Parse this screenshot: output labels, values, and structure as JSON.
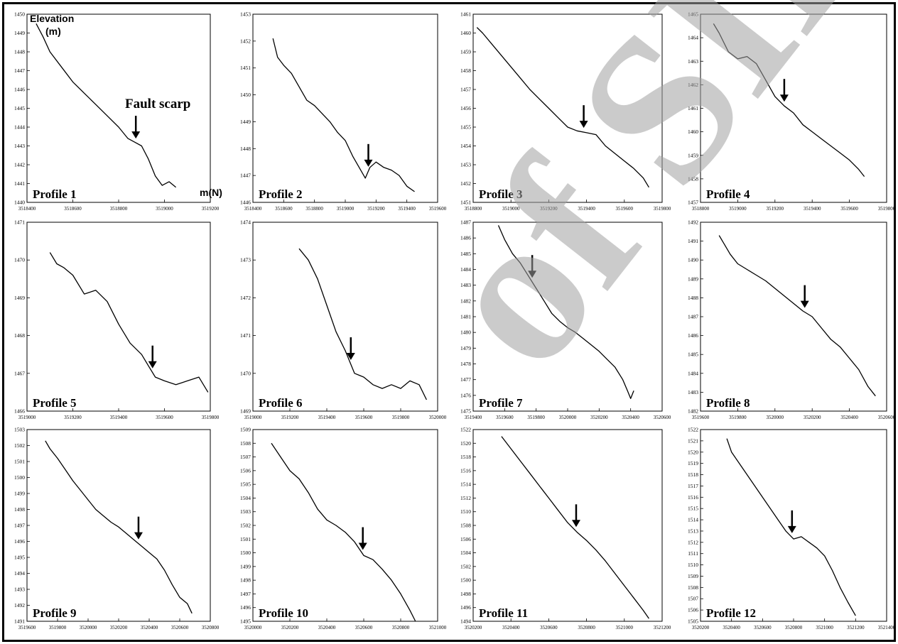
{
  "figure": {
    "y_axis_label_line1": "Elevation",
    "y_axis_label_line2": "(m)",
    "x_axis_label": "m(N)",
    "annotation": "Fault scarp",
    "watermark": "of SID"
  },
  "chart_data": [
    {
      "type": "line",
      "title": "Profile 1",
      "xlim": [
        3518400,
        3519200
      ],
      "ylim": [
        1440,
        1450
      ],
      "xticks": [
        3518400,
        3518600,
        3518800,
        3519000,
        3519200
      ],
      "yticks": [
        1440,
        1441,
        1442,
        1443,
        1444,
        1445,
        1446,
        1447,
        1448,
        1449,
        1450
      ],
      "x": [
        3518440,
        3518470,
        3518500,
        3518550,
        3518600,
        3518650,
        3518700,
        3518750,
        3518800,
        3518840,
        3518870,
        3518900,
        3518930,
        3518960,
        3518990,
        3519020,
        3519050
      ],
      "y": [
        1449.5,
        1448.8,
        1448.0,
        1447.2,
        1446.4,
        1445.8,
        1445.2,
        1444.6,
        1444.0,
        1443.4,
        1443.2,
        1443.0,
        1442.3,
        1441.4,
        1440.9,
        1441.1,
        1440.8
      ],
      "fault_scarp_x": 3518875
    },
    {
      "type": "line",
      "title": "Profile 2",
      "xlim": [
        3518400,
        3519600
      ],
      "ylim": [
        1446,
        1453
      ],
      "xticks": [
        3518400,
        3518600,
        3518800,
        3519000,
        3519200,
        3519400,
        3519600
      ],
      "yticks": [
        1446,
        1447,
        1448,
        1449,
        1450,
        1451,
        1452,
        1453
      ],
      "x": [
        3518530,
        3518560,
        3518600,
        3518650,
        3518700,
        3518750,
        3518800,
        3518850,
        3518900,
        3518950,
        3519000,
        3519050,
        3519100,
        3519130,
        3519160,
        3519200,
        3519250,
        3519300,
        3519350,
        3519400,
        3519450
      ],
      "y": [
        1452.1,
        1451.4,
        1451.1,
        1450.8,
        1450.3,
        1449.8,
        1449.6,
        1449.3,
        1449.0,
        1448.6,
        1448.3,
        1447.7,
        1447.2,
        1446.9,
        1447.3,
        1447.5,
        1447.3,
        1447.2,
        1447.0,
        1446.6,
        1446.4
      ],
      "fault_scarp_x": 3519150
    },
    {
      "type": "line",
      "title": "Profile 3",
      "xlim": [
        3518800,
        3519800
      ],
      "ylim": [
        1451,
        1461
      ],
      "xticks": [
        3518800,
        3519000,
        3519200,
        3519400,
        3519600,
        3519800
      ],
      "yticks": [
        1451,
        1452,
        1453,
        1454,
        1455,
        1456,
        1457,
        1458,
        1459,
        1460,
        1461
      ],
      "x": [
        3518820,
        3518850,
        3518900,
        3518950,
        3519000,
        3519050,
        3519100,
        3519150,
        3519200,
        3519250,
        3519300,
        3519350,
        3519400,
        3519450,
        3519500,
        3519550,
        3519600,
        3519650,
        3519700,
        3519730
      ],
      "y": [
        1460.3,
        1460.0,
        1459.4,
        1458.8,
        1458.2,
        1457.6,
        1457.0,
        1456.5,
        1456.0,
        1455.5,
        1455.0,
        1454.8,
        1454.7,
        1454.6,
        1454.0,
        1453.6,
        1453.2,
        1452.8,
        1452.3,
        1451.8
      ],
      "fault_scarp_x": 3519385
    },
    {
      "type": "line",
      "title": "Profile 4",
      "xlim": [
        3518800,
        3519800
      ],
      "ylim": [
        1457,
        1465
      ],
      "xticks": [
        3518800,
        3519000,
        3519200,
        3519400,
        3519600,
        3519800
      ],
      "yticks": [
        1457,
        1458,
        1459,
        1460,
        1461,
        1462,
        1463,
        1464,
        1465
      ],
      "x": [
        3518870,
        3518900,
        3518950,
        3519000,
        3519050,
        3519100,
        3519150,
        3519200,
        3519250,
        3519300,
        3519350,
        3519400,
        3519450,
        3519500,
        3519550,
        3519600,
        3519650,
        3519680
      ],
      "y": [
        1464.6,
        1464.2,
        1463.4,
        1463.1,
        1463.2,
        1462.9,
        1462.2,
        1461.5,
        1461.1,
        1460.8,
        1460.3,
        1460.0,
        1459.7,
        1459.4,
        1459.1,
        1458.8,
        1458.4,
        1458.1
      ],
      "fault_scarp_x": 3519250
    },
    {
      "type": "line",
      "title": "Profile 5",
      "xlim": [
        3519000,
        3519800
      ],
      "ylim": [
        1466,
        1471
      ],
      "xticks": [
        3519000,
        3519200,
        3519400,
        3519600,
        3519800
      ],
      "yticks": [
        1466,
        1467,
        1468,
        1469,
        1470,
        1471
      ],
      "x": [
        3519100,
        3519130,
        3519160,
        3519200,
        3519250,
        3519300,
        3519350,
        3519400,
        3519450,
        3519500,
        3519530,
        3519560,
        3519600,
        3519650,
        3519700,
        3519750,
        3519790
      ],
      "y": [
        1470.2,
        1469.9,
        1469.8,
        1469.6,
        1469.1,
        1469.2,
        1468.9,
        1468.3,
        1467.8,
        1467.5,
        1467.2,
        1466.9,
        1466.8,
        1466.7,
        1466.8,
        1466.9,
        1466.5
      ],
      "fault_scarp_x": 3519548
    },
    {
      "type": "line",
      "title": "Profile 6",
      "xlim": [
        3519000,
        3520000
      ],
      "ylim": [
        1469,
        1474
      ],
      "xticks": [
        3519000,
        3519200,
        3519400,
        3519600,
        3519800,
        3520000
      ],
      "yticks": [
        1469,
        1470,
        1471,
        1472,
        1473,
        1474
      ],
      "x": [
        3519250,
        3519300,
        3519350,
        3519400,
        3519450,
        3519500,
        3519550,
        3519600,
        3519650,
        3519700,
        3519750,
        3519800,
        3519850,
        3519900,
        3519940
      ],
      "y": [
        1473.3,
        1473.0,
        1472.5,
        1471.8,
        1471.1,
        1470.6,
        1470.0,
        1469.9,
        1469.7,
        1469.6,
        1469.7,
        1469.6,
        1469.8,
        1469.7,
        1469.3
      ],
      "fault_scarp_x": 3519530
    },
    {
      "type": "line",
      "title": "Profile 7",
      "xlim": [
        3519400,
        3520600
      ],
      "ylim": [
        1475,
        1487
      ],
      "xticks": [
        3519400,
        3519600,
        3519800,
        3520000,
        3520200,
        3520400,
        3520600
      ],
      "yticks": [
        1475,
        1476,
        1477,
        1478,
        1479,
        1480,
        1481,
        1482,
        1483,
        1484,
        1485,
        1486,
        1487
      ],
      "x": [
        3519560,
        3519600,
        3519650,
        3519700,
        3519750,
        3519800,
        3519850,
        3519900,
        3519950,
        3520000,
        3520050,
        3520100,
        3520150,
        3520200,
        3520250,
        3520300,
        3520350,
        3520380,
        3520400,
        3520420
      ],
      "y": [
        1486.8,
        1485.9,
        1485.0,
        1484.4,
        1483.6,
        1482.8,
        1482.0,
        1481.2,
        1480.7,
        1480.3,
        1480.0,
        1479.6,
        1479.2,
        1478.8,
        1478.3,
        1477.8,
        1477.0,
        1476.3,
        1475.8,
        1476.3
      ],
      "fault_scarp_x": 3519775
    },
    {
      "type": "line",
      "title": "Profile 8",
      "xlim": [
        3519600,
        3520600
      ],
      "ylim": [
        1482,
        1492
      ],
      "xticks": [
        3519600,
        3519800,
        3520000,
        3520200,
        3520400,
        3520600
      ],
      "yticks": [
        1482,
        1483,
        1484,
        1485,
        1486,
        1487,
        1488,
        1489,
        1490,
        1491,
        1492
      ],
      "x": [
        3519700,
        3519730,
        3519760,
        3519800,
        3519850,
        3519900,
        3519950,
        3520000,
        3520050,
        3520100,
        3520150,
        3520200,
        3520250,
        3520300,
        3520350,
        3520400,
        3520450,
        3520500,
        3520540
      ],
      "y": [
        1491.3,
        1490.8,
        1490.3,
        1489.8,
        1489.5,
        1489.2,
        1488.9,
        1488.5,
        1488.1,
        1487.7,
        1487.3,
        1487.0,
        1486.4,
        1485.8,
        1485.4,
        1484.8,
        1484.2,
        1483.3,
        1482.8
      ],
      "fault_scarp_x": 3520160
    },
    {
      "type": "line",
      "title": "Profile 9",
      "xlim": [
        3519600,
        3520800
      ],
      "ylim": [
        1491,
        1503
      ],
      "xticks": [
        3519600,
        3519800,
        3520000,
        3520200,
        3520400,
        3520600,
        3520800
      ],
      "yticks": [
        1491,
        1492,
        1493,
        1494,
        1495,
        1496,
        1497,
        1498,
        1499,
        1500,
        1501,
        1502,
        1503
      ],
      "x": [
        3519720,
        3519750,
        3519800,
        3519850,
        3519900,
        3519950,
        3520000,
        3520050,
        3520100,
        3520150,
        3520200,
        3520250,
        3520300,
        3520350,
        3520400,
        3520450,
        3520500,
        3520550,
        3520600,
        3520650,
        3520680
      ],
      "y": [
        1502.3,
        1501.8,
        1501.2,
        1500.5,
        1499.8,
        1499.2,
        1498.6,
        1498.0,
        1497.6,
        1497.2,
        1496.9,
        1496.5,
        1496.1,
        1495.7,
        1495.3,
        1494.9,
        1494.2,
        1493.3,
        1492.5,
        1492.1,
        1491.5
      ],
      "fault_scarp_x": 3520330
    },
    {
      "type": "line",
      "title": "Profile 10",
      "xlim": [
        3520000,
        3521000
      ],
      "ylim": [
        1495,
        1509
      ],
      "xticks": [
        3520000,
        3520200,
        3520400,
        3520600,
        3520800,
        3521000
      ],
      "yticks": [
        1495,
        1496,
        1497,
        1498,
        1499,
        1500,
        1501,
        1502,
        1503,
        1504,
        1505,
        1506,
        1507,
        1508,
        1509
      ],
      "x": [
        3520100,
        3520150,
        3520200,
        3520250,
        3520300,
        3520350,
        3520400,
        3520450,
        3520500,
        3520550,
        3520600,
        3520650,
        3520700,
        3520750,
        3520800,
        3520850,
        3520880
      ],
      "y": [
        1508.0,
        1507.0,
        1506.0,
        1505.4,
        1504.4,
        1503.2,
        1502.4,
        1502.0,
        1501.5,
        1500.8,
        1499.8,
        1499.5,
        1498.8,
        1498.0,
        1497.0,
        1495.8,
        1495.0
      ],
      "fault_scarp_x": 3520595
    },
    {
      "type": "line",
      "title": "Profile 11",
      "xlim": [
        3520200,
        3521200
      ],
      "ylim": [
        1494,
        1522
      ],
      "xticks": [
        3520200,
        3520400,
        3520600,
        3520800,
        3521000,
        3521200
      ],
      "yticks": [
        1494,
        1496,
        1498,
        1500,
        1502,
        1504,
        1506,
        1508,
        1510,
        1512,
        1514,
        1516,
        1518,
        1520,
        1522
      ],
      "x": [
        3520350,
        3520400,
        3520450,
        3520500,
        3520550,
        3520600,
        3520650,
        3520700,
        3520750,
        3520800,
        3520850,
        3520900,
        3520950,
        3521000,
        3521050,
        3521100,
        3521130
      ],
      "y": [
        1521.0,
        1519.2,
        1517.4,
        1515.6,
        1513.8,
        1512.0,
        1510.2,
        1508.4,
        1507.0,
        1505.8,
        1504.4,
        1502.8,
        1501.0,
        1499.2,
        1497.4,
        1495.6,
        1494.4
      ],
      "fault_scarp_x": 3520745
    },
    {
      "type": "line",
      "title": "Profile 12",
      "xlim": [
        3520200,
        3521400
      ],
      "ylim": [
        1505,
        1522
      ],
      "xticks": [
        3520200,
        3520400,
        3520600,
        3520800,
        3521000,
        3521200,
        3521400
      ],
      "yticks": [
        1505,
        1506,
        1507,
        1508,
        1509,
        1510,
        1511,
        1512,
        1513,
        1514,
        1515,
        1516,
        1517,
        1518,
        1519,
        1520,
        1521,
        1522
      ],
      "x": [
        3520370,
        3520400,
        3520450,
        3520500,
        3520550,
        3520600,
        3520650,
        3520700,
        3520750,
        3520800,
        3520850,
        3520900,
        3520950,
        3521000,
        3521050,
        3521100,
        3521150,
        3521200
      ],
      "y": [
        1521.2,
        1520.0,
        1519.0,
        1518.0,
        1517.0,
        1516.0,
        1515.0,
        1514.0,
        1513.0,
        1512.3,
        1512.5,
        1512.0,
        1511.5,
        1510.8,
        1509.5,
        1508.0,
        1506.7,
        1505.5
      ],
      "fault_scarp_x": 3520790
    }
  ]
}
